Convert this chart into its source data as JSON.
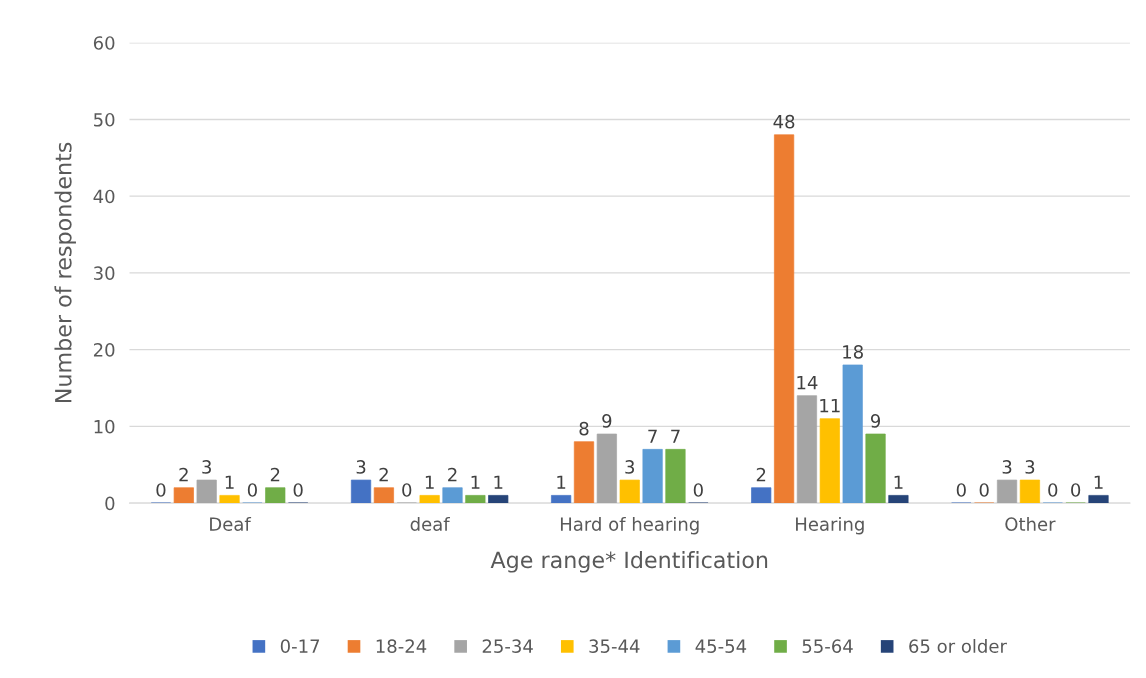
{
  "chart_data": {
    "type": "bar",
    "xlabel": "Age range* Identification",
    "ylabel": "Number of respondents",
    "categories": [
      "Deaf",
      "deaf",
      "Hard of hearing",
      "Hearing",
      "Other"
    ],
    "series": [
      {
        "name": "0-17",
        "color": "#4472c4",
        "values": [
          0,
          3,
          1,
          2,
          0
        ]
      },
      {
        "name": "18-24",
        "color": "#ed7d31",
        "values": [
          2,
          2,
          8,
          48,
          0
        ]
      },
      {
        "name": "25-34",
        "color": "#a5a5a5",
        "values": [
          3,
          0,
          9,
          14,
          3
        ]
      },
      {
        "name": "35-44",
        "color": "#ffc000",
        "values": [
          1,
          1,
          3,
          11,
          3
        ]
      },
      {
        "name": "45-54",
        "color": "#5b9bd5",
        "values": [
          0,
          2,
          7,
          18,
          0
        ]
      },
      {
        "name": "55-64",
        "color": "#70ad47",
        "values": [
          2,
          1,
          7,
          9,
          0
        ]
      },
      {
        "name": "65 or older",
        "color": "#264478",
        "values": [
          0,
          1,
          0,
          1,
          1
        ]
      }
    ],
    "ylim": [
      0,
      60
    ],
    "yticks": [
      0,
      10,
      20,
      30,
      40,
      50,
      60
    ],
    "grid": "y",
    "legend": "bottom",
    "data_labels": true
  }
}
